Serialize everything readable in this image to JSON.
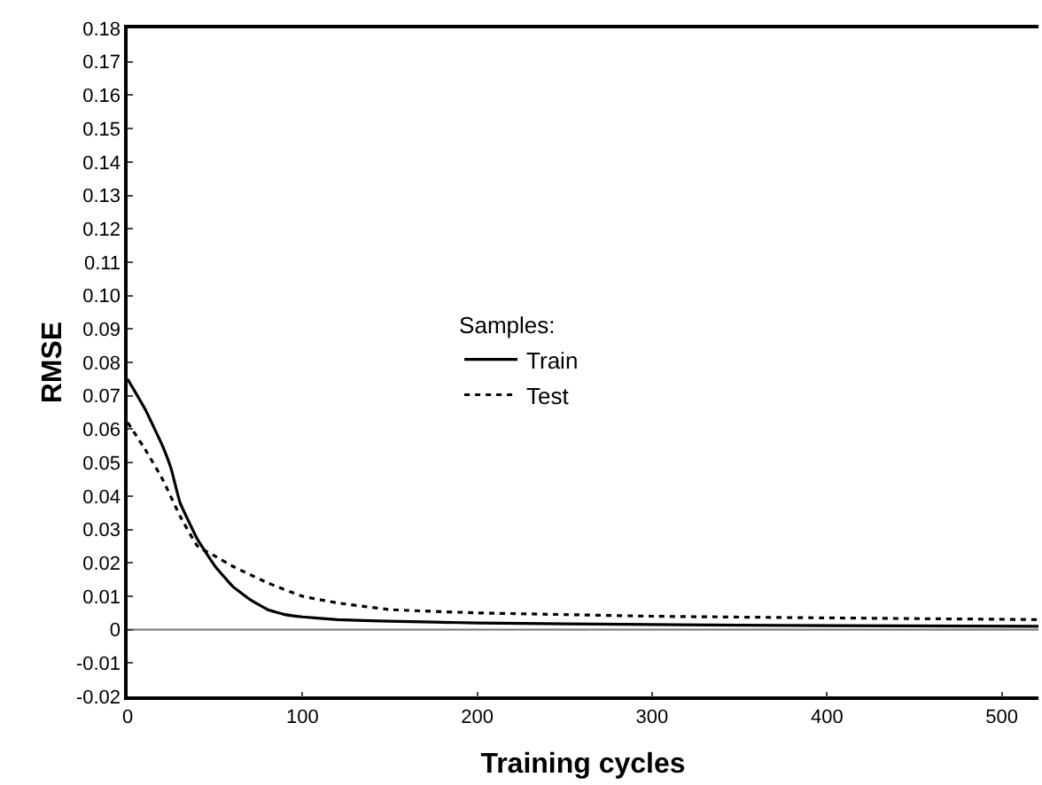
{
  "chart_data": {
    "type": "line",
    "xlabel": "Training cycles",
    "ylabel": "RMSE",
    "legend_title": "Samples:",
    "xlim": [
      0,
      521
    ],
    "xticks": [
      0,
      100,
      200,
      300,
      400,
      500
    ],
    "ylim": [
      -0.02,
      0.18
    ],
    "yticks": [
      {
        "value": -0.02,
        "label": "-0.02"
      },
      {
        "value": -0.01,
        "label": "-0.01"
      },
      0,
      {
        "value": 0.01,
        "label": "0.01"
      },
      {
        "value": 0.02,
        "label": "0.02"
      },
      {
        "value": 0.03,
        "label": "0.03"
      },
      {
        "value": 0.04,
        "label": "0.04"
      },
      {
        "value": 0.05,
        "label": "0.05"
      },
      {
        "value": 0.06,
        "label": "0.06"
      },
      {
        "value": 0.07,
        "label": "0.07"
      },
      {
        "value": 0.08,
        "label": "0.08"
      },
      {
        "value": 0.09,
        "label": "0.09"
      },
      {
        "value": 0.1,
        "label": "0.10"
      },
      {
        "value": 0.11,
        "label": "0.11"
      },
      {
        "value": 0.12,
        "label": "0.12"
      },
      {
        "value": 0.13,
        "label": "0.13"
      },
      {
        "value": 0.14,
        "label": "0.14"
      },
      {
        "value": 0.15,
        "label": "0.15"
      },
      {
        "value": 0.16,
        "label": "0.16"
      },
      {
        "value": 0.17,
        "label": "0.17"
      },
      {
        "value": 0.18,
        "label": "0.18"
      }
    ],
    "grid": false,
    "legend": "center",
    "marker": "none",
    "ref_lines": [
      {
        "axis": "y",
        "value": 0,
        "color": "#7f7f7f",
        "line_style": "solid"
      }
    ],
    "series": [
      {
        "name": "Train",
        "color": "#000000",
        "line_style": "solid",
        "x": [
          0,
          10,
          20,
          25,
          30,
          40,
          50,
          60,
          70,
          80,
          90,
          100,
          120,
          150,
          200,
          300,
          400,
          521
        ],
        "values": [
          0.075,
          0.066,
          0.055,
          0.048,
          0.038,
          0.027,
          0.019,
          0.013,
          0.009,
          0.006,
          0.0045,
          0.0038,
          0.003,
          0.0025,
          0.002,
          0.0015,
          0.0012,
          0.001
        ]
      },
      {
        "name": "Test",
        "color": "#000000",
        "line_style": "dotted",
        "x": [
          0,
          10,
          20,
          30,
          40,
          50,
          60,
          80,
          100,
          120,
          150,
          200,
          250,
          300,
          400,
          521
        ],
        "values": [
          0.062,
          0.054,
          0.045,
          0.034,
          0.025,
          0.022,
          0.019,
          0.014,
          0.01,
          0.008,
          0.006,
          0.005,
          0.0045,
          0.004,
          0.0035,
          0.003
        ]
      }
    ]
  }
}
